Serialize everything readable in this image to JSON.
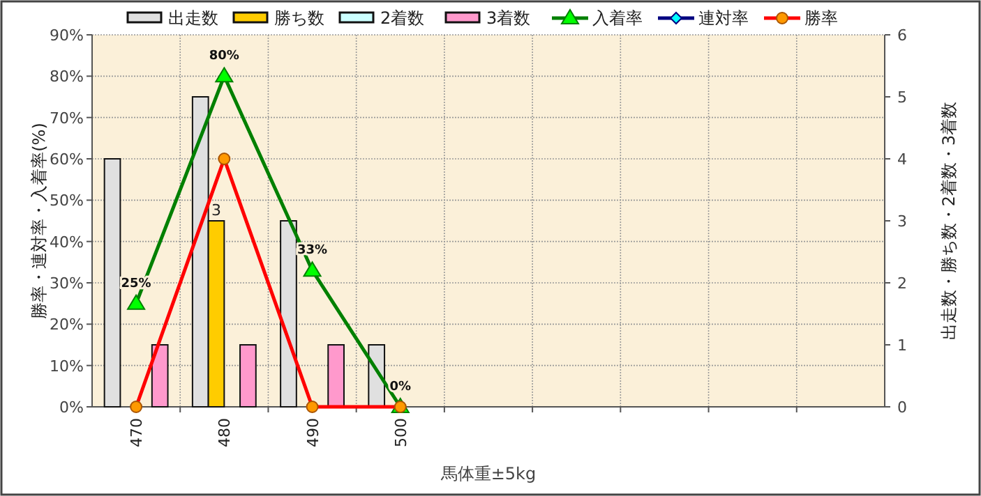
{
  "chart_data": {
    "type": "bar",
    "xlabel": "馬体重±5kg",
    "ylabel": "勝率・連対率・入着率(%)",
    "y2label": "出走数・勝ち数・2着数・3着数",
    "categories": [
      "470",
      "480",
      "490",
      "500",
      null,
      null,
      null,
      null,
      null
    ],
    "series": [
      {
        "name": "出走数",
        "axis": "y2",
        "color": "#e0e0e0",
        "values": [
          4,
          5,
          3,
          1,
          null,
          null,
          null,
          null,
          null
        ]
      },
      {
        "name": "勝ち数",
        "axis": "y2",
        "color": "#ffcc00",
        "values": [
          0,
          3,
          0,
          0,
          null,
          null,
          null,
          null,
          null
        ],
        "value_labels": [
          null,
          "3",
          null,
          null,
          null,
          null,
          null,
          null,
          null
        ]
      },
      {
        "name": "2着数",
        "axis": "y2",
        "color": "#ccffff",
        "values": [
          0,
          0,
          0,
          0,
          null,
          null,
          null,
          null,
          null
        ]
      },
      {
        "name": "3着数",
        "axis": "y2",
        "color": "#ff99cc",
        "values": [
          1,
          1,
          1,
          0,
          null,
          null,
          null,
          null,
          null
        ]
      },
      {
        "name": "入着率",
        "type": "line",
        "color": "#008000",
        "marker": "triangle",
        "values": [
          25,
          80,
          33,
          0,
          null,
          null,
          null,
          null,
          null
        ],
        "value_labels": [
          "25%",
          "80%",
          "33%",
          "0%",
          null,
          null,
          null,
          null,
          null
        ]
      },
      {
        "name": "連対率",
        "type": "line",
        "color": "#000080",
        "marker": "diamond",
        "values": [
          null,
          null,
          null,
          null,
          null,
          null,
          null,
          null,
          null
        ]
      },
      {
        "name": "勝率",
        "type": "line",
        "color": "#ff0000",
        "marker": "circle",
        "values": [
          0,
          60,
          0,
          0,
          null,
          null,
          null,
          null,
          null
        ]
      }
    ],
    "ylim": [
      0,
      90
    ],
    "yticks": [
      {
        "value": 0,
        "label": "0%"
      },
      {
        "value": 10,
        "label": "10%"
      },
      {
        "value": 20,
        "label": "20%"
      },
      {
        "value": 30,
        "label": "30%"
      },
      {
        "value": 40,
        "label": "40%"
      },
      {
        "value": 50,
        "label": "50%"
      },
      {
        "value": 60,
        "label": "60%"
      },
      {
        "value": 70,
        "label": "70%"
      },
      {
        "value": 80,
        "label": "80%"
      },
      {
        "value": 90,
        "label": "90%"
      }
    ],
    "y2lim": [
      0,
      6
    ],
    "y2ticks": [
      0,
      1,
      2,
      3,
      4,
      5,
      6
    ],
    "grid": true,
    "legend": "top"
  }
}
